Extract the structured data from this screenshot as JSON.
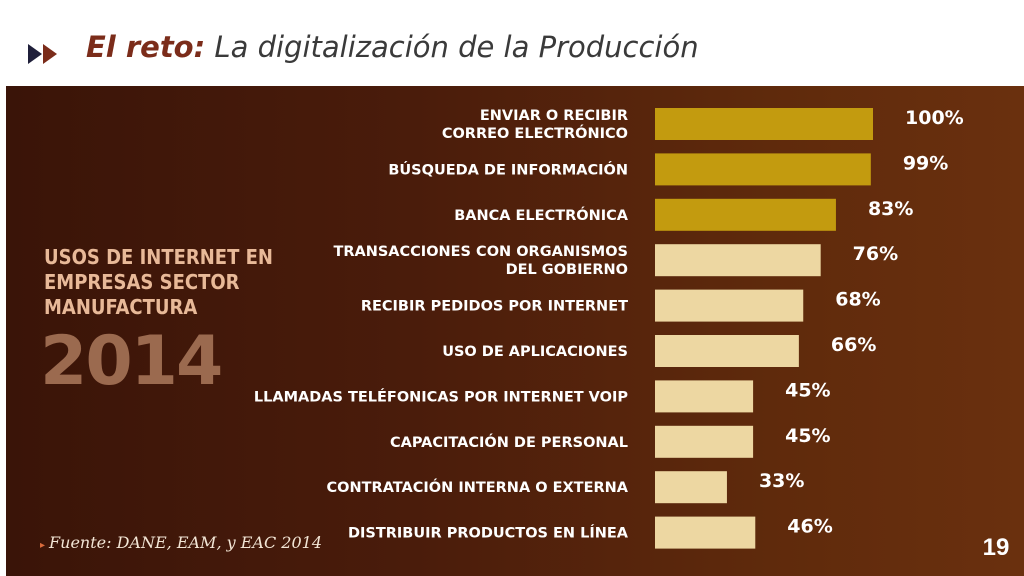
{
  "header": {
    "title_accent": "El reto:",
    "title_rest": "La digitalización de la Producción",
    "icon": "double-play-arrows-icon"
  },
  "side": {
    "title": "Usos de Internet en empresas sector manufactura",
    "year": "2014"
  },
  "source": "Fuente: DANE, EAM, y EAC 2014",
  "page_number": "19",
  "colors": {
    "highlight_bar": "#c39b0f",
    "normal_bar": "#edd7a2",
    "accent": "#7b2c1a"
  },
  "chart_data": {
    "type": "bar",
    "orientation": "horizontal",
    "categories": [
      [
        "ENVIAR O RECIBIR",
        "CORREO ELECTRÓNICO"
      ],
      [
        "BÚSQUEDA DE INFORMACIÓN"
      ],
      [
        "BANCA ELECTRÓNICA"
      ],
      [
        "TRANSACCIONES CON ORGANISMOS",
        "DEL GOBIERNO"
      ],
      [
        "RECIBIR PEDIDOS POR INTERNET"
      ],
      [
        "USO DE APLICACIONES"
      ],
      [
        "LLAMADAS TELÉFONICAS POR INTERNET VOIP"
      ],
      [
        "CAPACITACIÓN DE PERSONAL"
      ],
      [
        "CONTRATACIÓN INTERNA O EXTERNA"
      ],
      [
        "DISTRIBUIR PRODUCTOS EN LÍNEA"
      ]
    ],
    "values": [
      100,
      99,
      83,
      76,
      68,
      66,
      45,
      45,
      33,
      46
    ],
    "value_labels": [
      "100%",
      "99%",
      "83%",
      "76%",
      "68%",
      "66%",
      "45%",
      "45%",
      "33%",
      "46%"
    ],
    "highlighted": [
      true,
      true,
      true,
      false,
      false,
      false,
      false,
      false,
      false,
      false
    ],
    "xlim": [
      0,
      100
    ],
    "grid": false
  }
}
